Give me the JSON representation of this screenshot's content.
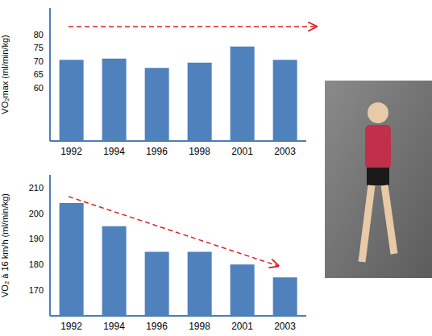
{
  "chart_data": [
    {
      "type": "bar",
      "y_label": "VO₂max (ml/min/kg)",
      "categories": [
        "1992",
        "1994",
        "1996",
        "1998",
        "2001",
        "2003"
      ],
      "values": [
        70.5,
        71,
        67.5,
        69.5,
        75.5,
        70.5
      ],
      "color": "#4f81bd",
      "ylim": [
        40,
        90
      ],
      "yticks": [
        60,
        65,
        70,
        75,
        80
      ],
      "grid": false
    },
    {
      "type": "bar",
      "y_label": "VO₂ à 16 km/h (ml/min/kg)",
      "categories": [
        "1992",
        "1994",
        "1996",
        "1998",
        "2001",
        "2003"
      ],
      "values": [
        204,
        195,
        185,
        185,
        180,
        175
      ],
      "color": "#4f81bd",
      "ylim": [
        160,
        215
      ],
      "yticks": [
        170,
        180,
        190,
        200,
        210
      ],
      "grid": false
    }
  ]
}
